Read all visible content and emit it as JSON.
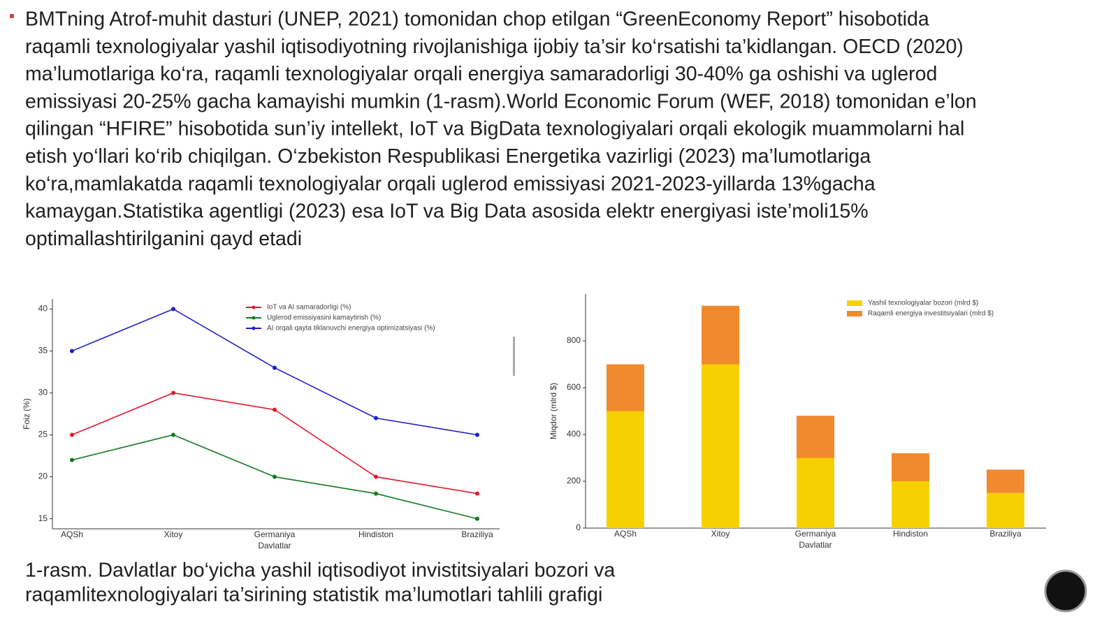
{
  "paragraph": {
    "lines": [
      "BMTning Atrof-muhit dasturi (UNEP, 2021) tomonidan chop etilgan “GreenEconomy Report” hisobotida",
      "raqamli texnologiyalar yashil iqtisodiyotning rivojlanishiga ijobiy ta’sir ko‘rsatishi ta’kidlangan. OECD (2020)",
      "ma’lumotlariga ko‘ra, raqamli texnologiyalar orqali energiya samaradorligi 30-40% ga oshishi va uglerod",
      "emissiyasi 20-25% gacha kamayishi mumkin (1-rasm).World Economic Forum (WEF, 2018) tomonidan e’lon",
      "qilingan “HFIRE” hisobotida sun’iy intellekt, IoT va BigData texnologiyalari orqali ekologik muammolarni hal",
      "etish yo‘llari ko‘rib chiqilgan. O‘zbekiston Respublikasi Energetika vazirligi (2023) ma’lumotlariga",
      "ko‘ra,mamlakatda raqamli texnologiyalar orqali uglerod emissiyasi 2021-2023-yillarda 13%gacha",
      "kamaygan.Statistika agentligi (2023) esa IoT va Big Data asosida elektr energiyasi iste’moli15%",
      "optimallashtirilganini qayd etadi"
    ]
  },
  "chart_data": [
    {
      "type": "line",
      "x_label": "Davlatlar",
      "y_label": "Foiz (%)",
      "categories": [
        "AQSh",
        "Xitoy",
        "Germaniya",
        "Hindiston",
        "Braziliya"
      ],
      "ylim": [
        13.8,
        41.2
      ],
      "yticks": [
        15,
        20,
        25,
        30,
        35,
        40
      ],
      "legend": "upper-center",
      "series": [
        {
          "name": "IoT va AI samaradorligi (%)",
          "color": "#e3182d",
          "values": [
            25,
            30,
            28,
            20,
            18
          ]
        },
        {
          "name": "Uglerod emissiyasini kamaytirish (%)",
          "color": "#137a1e",
          "values": [
            22,
            25,
            20,
            18,
            15
          ]
        },
        {
          "name": "AI orqali qayta tiklanuvchi energiya optimizatsiyasi (%)",
          "color": "#1f1fc8",
          "values": [
            35,
            40,
            33,
            27,
            25
          ]
        }
      ]
    },
    {
      "type": "stacked-bar",
      "x_label": "Davlatlar",
      "y_label": "Miqdor (mlrd $)",
      "categories": [
        "AQSh",
        "Xitoy",
        "Germaniya",
        "Hindiston",
        "Braziliya"
      ],
      "ylim": [
        0,
        1000
      ],
      "yticks": [
        0,
        200,
        400,
        600,
        800
      ],
      "legend": "upper-right",
      "series": [
        {
          "name": "Yashil texnologiyalar bozori (mlrd $)",
          "color": "#f7d000",
          "values": [
            500,
            700,
            300,
            200,
            150
          ]
        },
        {
          "name": "Raqamli energiya investitsiyalari (mlrd $)",
          "color": "#f08a2c",
          "values": [
            200,
            250,
            180,
            120,
            100
          ]
        }
      ]
    }
  ],
  "caption": {
    "lines": [
      "1-rasm. Davlatlar bo‘yicha yashil iqtisodiyot invistitsiyalari bozori va",
      "raqamlitexnologiyalari ta’sirining statistik ma’lumotlari tahlili grafigi"
    ]
  }
}
